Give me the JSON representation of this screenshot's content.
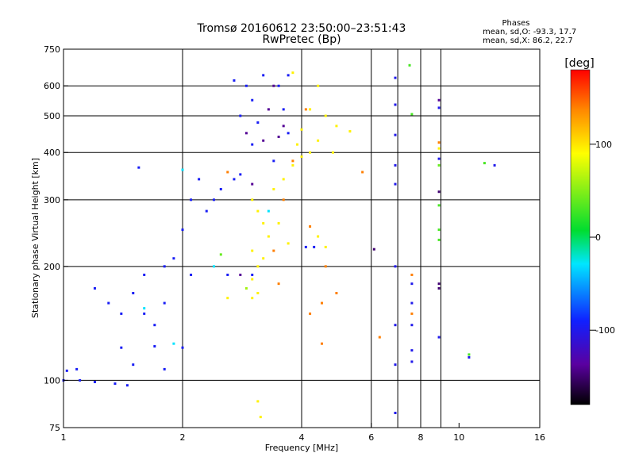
{
  "chart_data": {
    "type": "scatter",
    "title": "Tromsø 20160612 23:50:00–23:51:43",
    "subtitle": "RwPretec (Bp)",
    "xlabel": "Frequency [MHz]",
    "ylabel": "Stationary phase Virtual Height [km]",
    "x_scale": "log",
    "y_scale": "log",
    "xlim": [
      1,
      16
    ],
    "ylim": [
      75,
      750
    ],
    "x_ticks": [
      1,
      2,
      4,
      6,
      8,
      10,
      16
    ],
    "x_tick_labels": [
      "1",
      "2",
      "4",
      "6",
      "8",
      "10",
      "16"
    ],
    "y_ticks": [
      75,
      100,
      200,
      300,
      400,
      500,
      600,
      750
    ],
    "y_tick_labels": [
      "75",
      "100",
      "200",
      "300",
      "400",
      "500",
      "600",
      "750"
    ],
    "grid": true,
    "grid_x": [
      2,
      4,
      6,
      7,
      8,
      9
    ],
    "grid_y": [
      100,
      200,
      300,
      400,
      500,
      600
    ],
    "stats": {
      "heading": "Phases",
      "line_o": "mean, sd,O: -93.3, 17.7",
      "line_x": "mean, sd,X:  86.2, 22.7"
    },
    "colorbar": {
      "label": "[deg]",
      "range": [
        -180,
        180
      ],
      "ticks": [
        100,
        0,
        -100
      ],
      "tick_labels": [
        "100",
        "0",
        "-100"
      ]
    },
    "series": [
      {
        "mode": "O",
        "points": [
          {
            "x": 1.0,
            "y": 100,
            "phase": -95
          },
          {
            "x": 1.1,
            "y": 100,
            "phase": -95
          },
          {
            "x": 1.2,
            "y": 99,
            "phase": -95
          },
          {
            "x": 1.35,
            "y": 98,
            "phase": -95
          },
          {
            "x": 1.45,
            "y": 97,
            "phase": -95
          },
          {
            "x": 1.02,
            "y": 106,
            "phase": -95
          },
          {
            "x": 1.08,
            "y": 107,
            "phase": -95
          },
          {
            "x": 1.2,
            "y": 175,
            "phase": -95
          },
          {
            "x": 1.3,
            "y": 160,
            "phase": -95
          },
          {
            "x": 1.4,
            "y": 150,
            "phase": -95
          },
          {
            "x": 1.5,
            "y": 170,
            "phase": -95
          },
          {
            "x": 1.6,
            "y": 150,
            "phase": -95
          },
          {
            "x": 1.7,
            "y": 140,
            "phase": -95
          },
          {
            "x": 1.8,
            "y": 160,
            "phase": -95
          },
          {
            "x": 1.6,
            "y": 190,
            "phase": -95
          },
          {
            "x": 1.8,
            "y": 200,
            "phase": -95
          },
          {
            "x": 1.9,
            "y": 210,
            "phase": -95
          },
          {
            "x": 1.4,
            "y": 122,
            "phase": -95
          },
          {
            "x": 1.7,
            "y": 123,
            "phase": -95
          },
          {
            "x": 2.0,
            "y": 122,
            "phase": -95
          },
          {
            "x": 1.8,
            "y": 107,
            "phase": -95
          },
          {
            "x": 2.0,
            "y": 250,
            "phase": -95
          },
          {
            "x": 2.1,
            "y": 300,
            "phase": -95
          },
          {
            "x": 2.2,
            "y": 340,
            "phase": -95
          },
          {
            "x": 2.3,
            "y": 280,
            "phase": -95
          },
          {
            "x": 2.4,
            "y": 300,
            "phase": -95
          },
          {
            "x": 2.5,
            "y": 320,
            "phase": -95
          },
          {
            "x": 2.7,
            "y": 340,
            "phase": -95
          },
          {
            "x": 2.8,
            "y": 350,
            "phase": -95
          },
          {
            "x": 3.0,
            "y": 420,
            "phase": -95
          },
          {
            "x": 2.8,
            "y": 500,
            "phase": -95
          },
          {
            "x": 2.9,
            "y": 600,
            "phase": -95
          },
          {
            "x": 3.0,
            "y": 550,
            "phase": -95
          },
          {
            "x": 3.2,
            "y": 640,
            "phase": -95
          },
          {
            "x": 3.5,
            "y": 600,
            "phase": -95
          },
          {
            "x": 3.6,
            "y": 520,
            "phase": -95
          },
          {
            "x": 3.7,
            "y": 450,
            "phase": -95
          },
          {
            "x": 3.4,
            "y": 380,
            "phase": -95
          },
          {
            "x": 2.7,
            "y": 620,
            "phase": -95
          },
          {
            "x": 3.1,
            "y": 480,
            "phase": -95
          },
          {
            "x": 3.7,
            "y": 640,
            "phase": -95
          },
          {
            "x": 4.1,
            "y": 225,
            "phase": -95
          },
          {
            "x": 4.3,
            "y": 225,
            "phase": -95
          },
          {
            "x": 3.0,
            "y": 190,
            "phase": -95
          },
          {
            "x": 2.6,
            "y": 190,
            "phase": -95
          },
          {
            "x": 1.5,
            "y": 110,
            "phase": -95
          },
          {
            "x": 1.55,
            "y": 365,
            "phase": -95
          },
          {
            "x": 2.1,
            "y": 190,
            "phase": -95
          },
          {
            "x": 2.9,
            "y": 450,
            "phase": -140
          },
          {
            "x": 3.2,
            "y": 430,
            "phase": -140
          },
          {
            "x": 3.5,
            "y": 440,
            "phase": -140
          },
          {
            "x": 3.3,
            "y": 520,
            "phase": -140
          },
          {
            "x": 3.6,
            "y": 470,
            "phase": -140
          },
          {
            "x": 3.4,
            "y": 600,
            "phase": -140
          },
          {
            "x": 3.0,
            "y": 330,
            "phase": -140
          },
          {
            "x": 2.8,
            "y": 190,
            "phase": -140
          },
          {
            "x": 1.6,
            "y": 155,
            "phase": -30
          },
          {
            "x": 2.4,
            "y": 200,
            "phase": -30
          },
          {
            "x": 3.3,
            "y": 280,
            "phase": -30
          },
          {
            "x": 2.0,
            "y": 360,
            "phase": -30
          },
          {
            "x": 1.9,
            "y": 125,
            "phase": -30
          },
          {
            "x": 6.9,
            "y": 630,
            "phase": -100
          },
          {
            "x": 6.9,
            "y": 535,
            "phase": -100
          },
          {
            "x": 6.9,
            "y": 445,
            "phase": -100
          },
          {
            "x": 6.9,
            "y": 370,
            "phase": -100
          },
          {
            "x": 6.9,
            "y": 330,
            "phase": -100
          },
          {
            "x": 6.9,
            "y": 200,
            "phase": -100
          },
          {
            "x": 6.9,
            "y": 140,
            "phase": -100
          },
          {
            "x": 6.9,
            "y": 110,
            "phase": -100
          },
          {
            "x": 6.9,
            "y": 82,
            "phase": -100
          },
          {
            "x": 8.9,
            "y": 550,
            "phase": -140
          },
          {
            "x": 8.9,
            "y": 525,
            "phase": -100
          },
          {
            "x": 8.9,
            "y": 385,
            "phase": -100
          },
          {
            "x": 8.9,
            "y": 315,
            "phase": -150
          },
          {
            "x": 8.9,
            "y": 180,
            "phase": -150
          },
          {
            "x": 8.9,
            "y": 175,
            "phase": -150
          },
          {
            "x": 8.9,
            "y": 130,
            "phase": -100
          },
          {
            "x": 7.6,
            "y": 180,
            "phase": -100
          },
          {
            "x": 7.6,
            "y": 160,
            "phase": -100
          },
          {
            "x": 7.6,
            "y": 140,
            "phase": -100
          },
          {
            "x": 7.6,
            "y": 120,
            "phase": -100
          },
          {
            "x": 7.6,
            "y": 112,
            "phase": -100
          },
          {
            "x": 10.6,
            "y": 115,
            "phase": -100
          },
          {
            "x": 12.3,
            "y": 370,
            "phase": -100
          },
          {
            "x": 6.1,
            "y": 222,
            "phase": -150
          }
        ]
      },
      {
        "mode": "X",
        "points": [
          {
            "x": 3.0,
            "y": 300,
            "phase": 95
          },
          {
            "x": 3.1,
            "y": 280,
            "phase": 95
          },
          {
            "x": 3.2,
            "y": 260,
            "phase": 95
          },
          {
            "x": 3.0,
            "y": 220,
            "phase": 95
          },
          {
            "x": 3.1,
            "y": 200,
            "phase": 95
          },
          {
            "x": 3.0,
            "y": 185,
            "phase": 95
          },
          {
            "x": 3.1,
            "y": 170,
            "phase": 95
          },
          {
            "x": 3.0,
            "y": 165,
            "phase": 95
          },
          {
            "x": 3.4,
            "y": 320,
            "phase": 95
          },
          {
            "x": 3.6,
            "y": 340,
            "phase": 95
          },
          {
            "x": 3.8,
            "y": 370,
            "phase": 95
          },
          {
            "x": 4.0,
            "y": 390,
            "phase": 95
          },
          {
            "x": 4.2,
            "y": 400,
            "phase": 95
          },
          {
            "x": 3.9,
            "y": 420,
            "phase": 95
          },
          {
            "x": 4.4,
            "y": 430,
            "phase": 95
          },
          {
            "x": 4.8,
            "y": 400,
            "phase": 95
          },
          {
            "x": 4.0,
            "y": 460,
            "phase": 95
          },
          {
            "x": 4.6,
            "y": 500,
            "phase": 95
          },
          {
            "x": 4.2,
            "y": 520,
            "phase": 95
          },
          {
            "x": 4.4,
            "y": 600,
            "phase": 95
          },
          {
            "x": 3.8,
            "y": 650,
            "phase": 95
          },
          {
            "x": 4.9,
            "y": 470,
            "phase": 95
          },
          {
            "x": 5.3,
            "y": 455,
            "phase": 95
          },
          {
            "x": 3.2,
            "y": 210,
            "phase": 95
          },
          {
            "x": 3.3,
            "y": 240,
            "phase": 95
          },
          {
            "x": 3.5,
            "y": 260,
            "phase": 95
          },
          {
            "x": 3.7,
            "y": 230,
            "phase": 95
          },
          {
            "x": 4.4,
            "y": 240,
            "phase": 95
          },
          {
            "x": 4.6,
            "y": 225,
            "phase": 95
          },
          {
            "x": 3.1,
            "y": 88,
            "phase": 95
          },
          {
            "x": 3.15,
            "y": 80,
            "phase": 95
          },
          {
            "x": 2.6,
            "y": 165,
            "phase": 95
          },
          {
            "x": 2.9,
            "y": 175,
            "phase": 60
          },
          {
            "x": 3.4,
            "y": 220,
            "phase": 140
          },
          {
            "x": 3.6,
            "y": 300,
            "phase": 140
          },
          {
            "x": 3.8,
            "y": 380,
            "phase": 140
          },
          {
            "x": 4.1,
            "y": 520,
            "phase": 140
          },
          {
            "x": 3.5,
            "y": 180,
            "phase": 140
          },
          {
            "x": 2.6,
            "y": 355,
            "phase": 140
          },
          {
            "x": 5.7,
            "y": 355,
            "phase": 140
          },
          {
            "x": 4.6,
            "y": 200,
            "phase": 140
          },
          {
            "x": 4.2,
            "y": 255,
            "phase": 140
          },
          {
            "x": 4.2,
            "y": 150,
            "phase": 140
          },
          {
            "x": 4.5,
            "y": 160,
            "phase": 140
          },
          {
            "x": 4.5,
            "y": 125,
            "phase": 140
          },
          {
            "x": 7.5,
            "y": 680,
            "phase": 30
          },
          {
            "x": 7.6,
            "y": 505,
            "phase": 30
          },
          {
            "x": 8.9,
            "y": 425,
            "phase": 140
          },
          {
            "x": 8.9,
            "y": 410,
            "phase": 95
          },
          {
            "x": 8.9,
            "y": 370,
            "phase": 40
          },
          {
            "x": 8.9,
            "y": 290,
            "phase": 30
          },
          {
            "x": 8.9,
            "y": 250,
            "phase": 30
          },
          {
            "x": 8.9,
            "y": 235,
            "phase": 30
          },
          {
            "x": 7.6,
            "y": 190,
            "phase": 140
          },
          {
            "x": 7.6,
            "y": 150,
            "phase": 140
          },
          {
            "x": 10.6,
            "y": 117,
            "phase": 30
          },
          {
            "x": 11.6,
            "y": 375,
            "phase": 30
          },
          {
            "x": 4.9,
            "y": 170,
            "phase": 140
          },
          {
            "x": 6.3,
            "y": 130,
            "phase": 140
          },
          {
            "x": 2.5,
            "y": 215,
            "phase": 40
          }
        ]
      }
    ]
  }
}
